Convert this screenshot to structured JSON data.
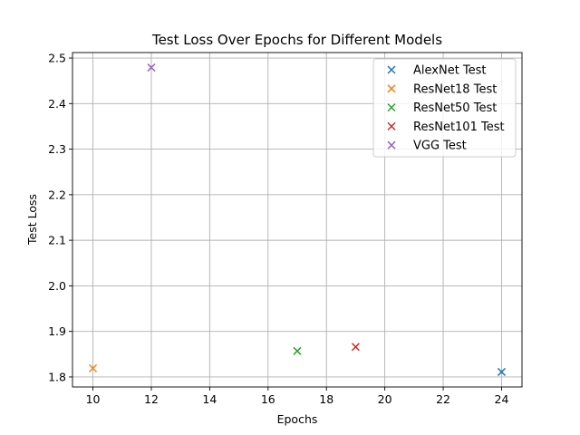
{
  "chart_data": {
    "type": "scatter",
    "title": "Test Loss Over Epochs for Different Models",
    "xlabel": "Epochs",
    "ylabel": "Test Loss",
    "xlim": [
      9.3,
      24.7
    ],
    "ylim": [
      1.778,
      2.512
    ],
    "xticks": [
      10,
      12,
      14,
      16,
      18,
      20,
      22,
      24
    ],
    "yticks": [
      1.8,
      1.9,
      2.0,
      2.1,
      2.2,
      2.3,
      2.4,
      2.5
    ],
    "xtick_labels": [
      "10",
      "12",
      "14",
      "16",
      "18",
      "20",
      "22",
      "24"
    ],
    "ytick_labels": [
      "1.8",
      "1.9",
      "2.0",
      "2.1",
      "2.2",
      "2.3",
      "2.4",
      "2.5"
    ],
    "grid": true,
    "legend_position": "top-right",
    "marker": "x",
    "series": [
      {
        "name": "AlexNet Test",
        "color": "#1f77b4",
        "points": [
          {
            "x": 24,
            "y": 1.811
          }
        ]
      },
      {
        "name": "ResNet18 Test",
        "color": "#ff7f0e",
        "points": [
          {
            "x": 10,
            "y": 1.819
          }
        ]
      },
      {
        "name": "ResNet50 Test",
        "color": "#2ca02c",
        "points": [
          {
            "x": 17,
            "y": 1.857
          }
        ]
      },
      {
        "name": "ResNet101 Test",
        "color": "#d62728",
        "points": [
          {
            "x": 19,
            "y": 1.866
          }
        ]
      },
      {
        "name": "VGG Test",
        "color": "#9467bd",
        "points": [
          {
            "x": 12,
            "y": 2.479
          }
        ]
      }
    ]
  }
}
